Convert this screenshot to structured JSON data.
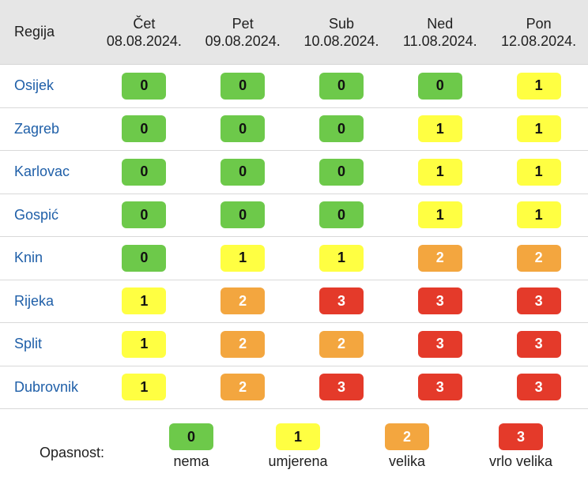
{
  "table": {
    "header": {
      "region_label": "Regija",
      "days": [
        {
          "name": "Čet",
          "date": "08.08.2024."
        },
        {
          "name": "Pet",
          "date": "09.08.2024."
        },
        {
          "name": "Sub",
          "date": "10.08.2024."
        },
        {
          "name": "Ned",
          "date": "11.08.2024."
        },
        {
          "name": "Pon",
          "date": "12.08.2024."
        }
      ]
    },
    "rows": [
      {
        "region": "Osijek",
        "levels": [
          "0",
          "0",
          "0",
          "0",
          "1"
        ]
      },
      {
        "region": "Zagreb",
        "levels": [
          "0",
          "0",
          "0",
          "1",
          "1"
        ]
      },
      {
        "region": "Karlovac",
        "levels": [
          "0",
          "0",
          "0",
          "1",
          "1"
        ]
      },
      {
        "region": "Gospić",
        "levels": [
          "0",
          "0",
          "0",
          "1",
          "1"
        ]
      },
      {
        "region": "Knin",
        "levels": [
          "0",
          "1",
          "1",
          "2",
          "2"
        ]
      },
      {
        "region": "Rijeka",
        "levels": [
          "1",
          "2",
          "3",
          "3",
          "3"
        ]
      },
      {
        "region": "Split",
        "levels": [
          "1",
          "2",
          "2",
          "3",
          "3"
        ]
      },
      {
        "region": "Dubrovnik",
        "levels": [
          "1",
          "2",
          "3",
          "3",
          "3"
        ]
      }
    ]
  },
  "legend": {
    "title": "Opasnost:",
    "items": [
      {
        "value": "0",
        "label": "nema"
      },
      {
        "value": "1",
        "label": "umjerena"
      },
      {
        "value": "2",
        "label": "velika"
      },
      {
        "value": "3",
        "label": "vrlo velika"
      }
    ]
  },
  "colors": {
    "level_0": "#6dc94a",
    "level_1": "#ffff42",
    "level_2": "#f3a63f",
    "level_3": "#e43a2a",
    "region_link": "#1f5fa8",
    "header_bg": "#e6e6e6"
  }
}
